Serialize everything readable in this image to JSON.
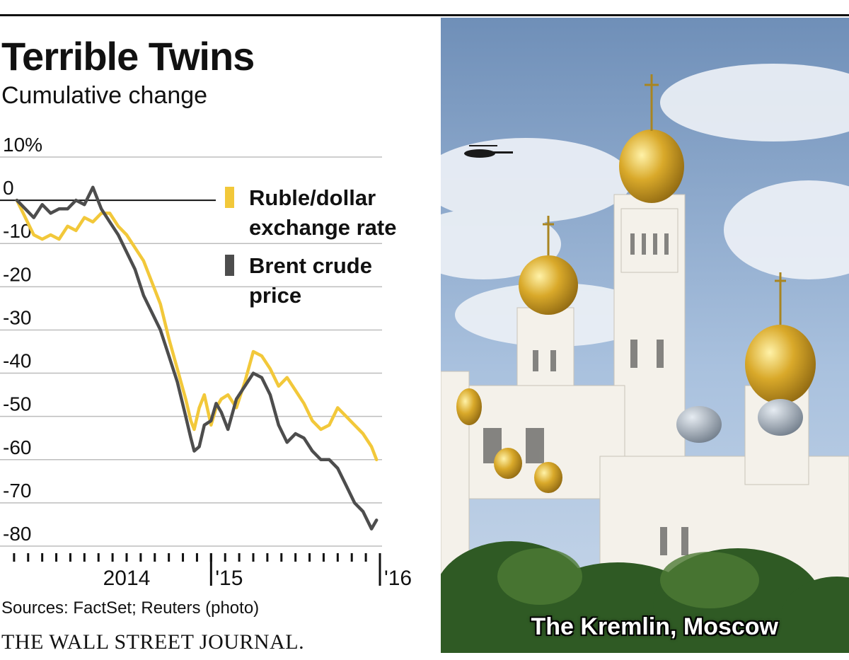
{
  "header": {
    "title": "Terrible Twins",
    "subtitle": "Cumulative change"
  },
  "footer": {
    "sources": "Sources: FactSet; Reuters (photo)",
    "publisher": "THE WALL STREET JOURNAL."
  },
  "photo": {
    "caption": "The Kremlin, Moscow"
  },
  "colors": {
    "ruble": "#f2c83a",
    "brent": "#4d4d4d",
    "grid": "#bdbdbd",
    "axis": "#111111"
  },
  "chart_data": {
    "type": "line",
    "title": "Terrible Twins",
    "subtitle": "Cumulative change",
    "xlabel": "",
    "ylabel": "",
    "ylim": [
      -80,
      10
    ],
    "xlim": [
      2013.75,
      2016.0
    ],
    "grid": true,
    "y_ticks": [
      10,
      0,
      -10,
      -20,
      -30,
      -40,
      -50,
      -60,
      -70,
      -80
    ],
    "y_tick_labels": [
      "10%",
      "0",
      "-10",
      "-20",
      "-30",
      "-40",
      "-50",
      "-60",
      "-70",
      "-80"
    ],
    "x_tick_labels": [
      {
        "label": "2014",
        "x": 2014.5
      },
      {
        "label": "'15",
        "x": 2015.0
      },
      {
        "label": "'16",
        "x": 2016.0
      }
    ],
    "legend_position": "top-right",
    "series": [
      {
        "name": "Ruble/dollar exchange rate",
        "legend_lines": [
          "Ruble/dollar",
          "exchange rate"
        ],
        "color_key": "ruble",
        "x": [
          2013.85,
          2013.9,
          2013.95,
          2014.0,
          2014.05,
          2014.1,
          2014.15,
          2014.2,
          2014.25,
          2014.3,
          2014.35,
          2014.4,
          2014.45,
          2014.5,
          2014.55,
          2014.6,
          2014.65,
          2014.7,
          2014.75,
          2014.8,
          2014.85,
          2014.88,
          2014.9,
          2014.93,
          2014.96,
          2015.0,
          2015.03,
          2015.06,
          2015.1,
          2015.15,
          2015.2,
          2015.25,
          2015.3,
          2015.35,
          2015.4,
          2015.45,
          2015.5,
          2015.55,
          2015.6,
          2015.65,
          2015.7,
          2015.75,
          2015.8,
          2015.85,
          2015.9,
          2015.95,
          2015.98
        ],
        "values": [
          0,
          -4,
          -8,
          -9,
          -8,
          -9,
          -6,
          -7,
          -4,
          -5,
          -3,
          -3,
          -6,
          -8,
          -11,
          -14,
          -19,
          -24,
          -32,
          -39,
          -46,
          -51,
          -53,
          -48,
          -45,
          -52,
          -48,
          -46,
          -45,
          -48,
          -42,
          -35,
          -36,
          -39,
          -43,
          -41,
          -44,
          -47,
          -51,
          -53,
          -52,
          -48,
          -50,
          -52,
          -54,
          -57,
          -60
        ]
      },
      {
        "name": "Brent crude price",
        "legend_lines": [
          "Brent crude",
          "price"
        ],
        "color_key": "brent",
        "x": [
          2013.85,
          2013.9,
          2013.95,
          2014.0,
          2014.05,
          2014.1,
          2014.15,
          2014.2,
          2014.25,
          2014.3,
          2014.35,
          2014.4,
          2014.45,
          2014.5,
          2014.55,
          2014.6,
          2014.65,
          2014.7,
          2014.75,
          2014.8,
          2014.85,
          2014.88,
          2014.9,
          2014.93,
          2014.96,
          2015.0,
          2015.03,
          2015.06,
          2015.1,
          2015.15,
          2015.2,
          2015.25,
          2015.3,
          2015.35,
          2015.4,
          2015.45,
          2015.5,
          2015.55,
          2015.6,
          2015.65,
          2015.7,
          2015.75,
          2015.8,
          2015.85,
          2015.9,
          2015.95,
          2015.98
        ],
        "values": [
          0,
          -2,
          -4,
          -1,
          -3,
          -2,
          -2,
          0,
          -1,
          3,
          -2,
          -5,
          -8,
          -12,
          -16,
          -22,
          -26,
          -30,
          -36,
          -42,
          -50,
          -55,
          -58,
          -57,
          -52,
          -51,
          -47,
          -49,
          -53,
          -46,
          -43,
          -40,
          -41,
          -45,
          -52,
          -56,
          -54,
          -55,
          -58,
          -60,
          -60,
          -62,
          -66,
          -70,
          -72,
          -76,
          -74
        ]
      }
    ]
  }
}
